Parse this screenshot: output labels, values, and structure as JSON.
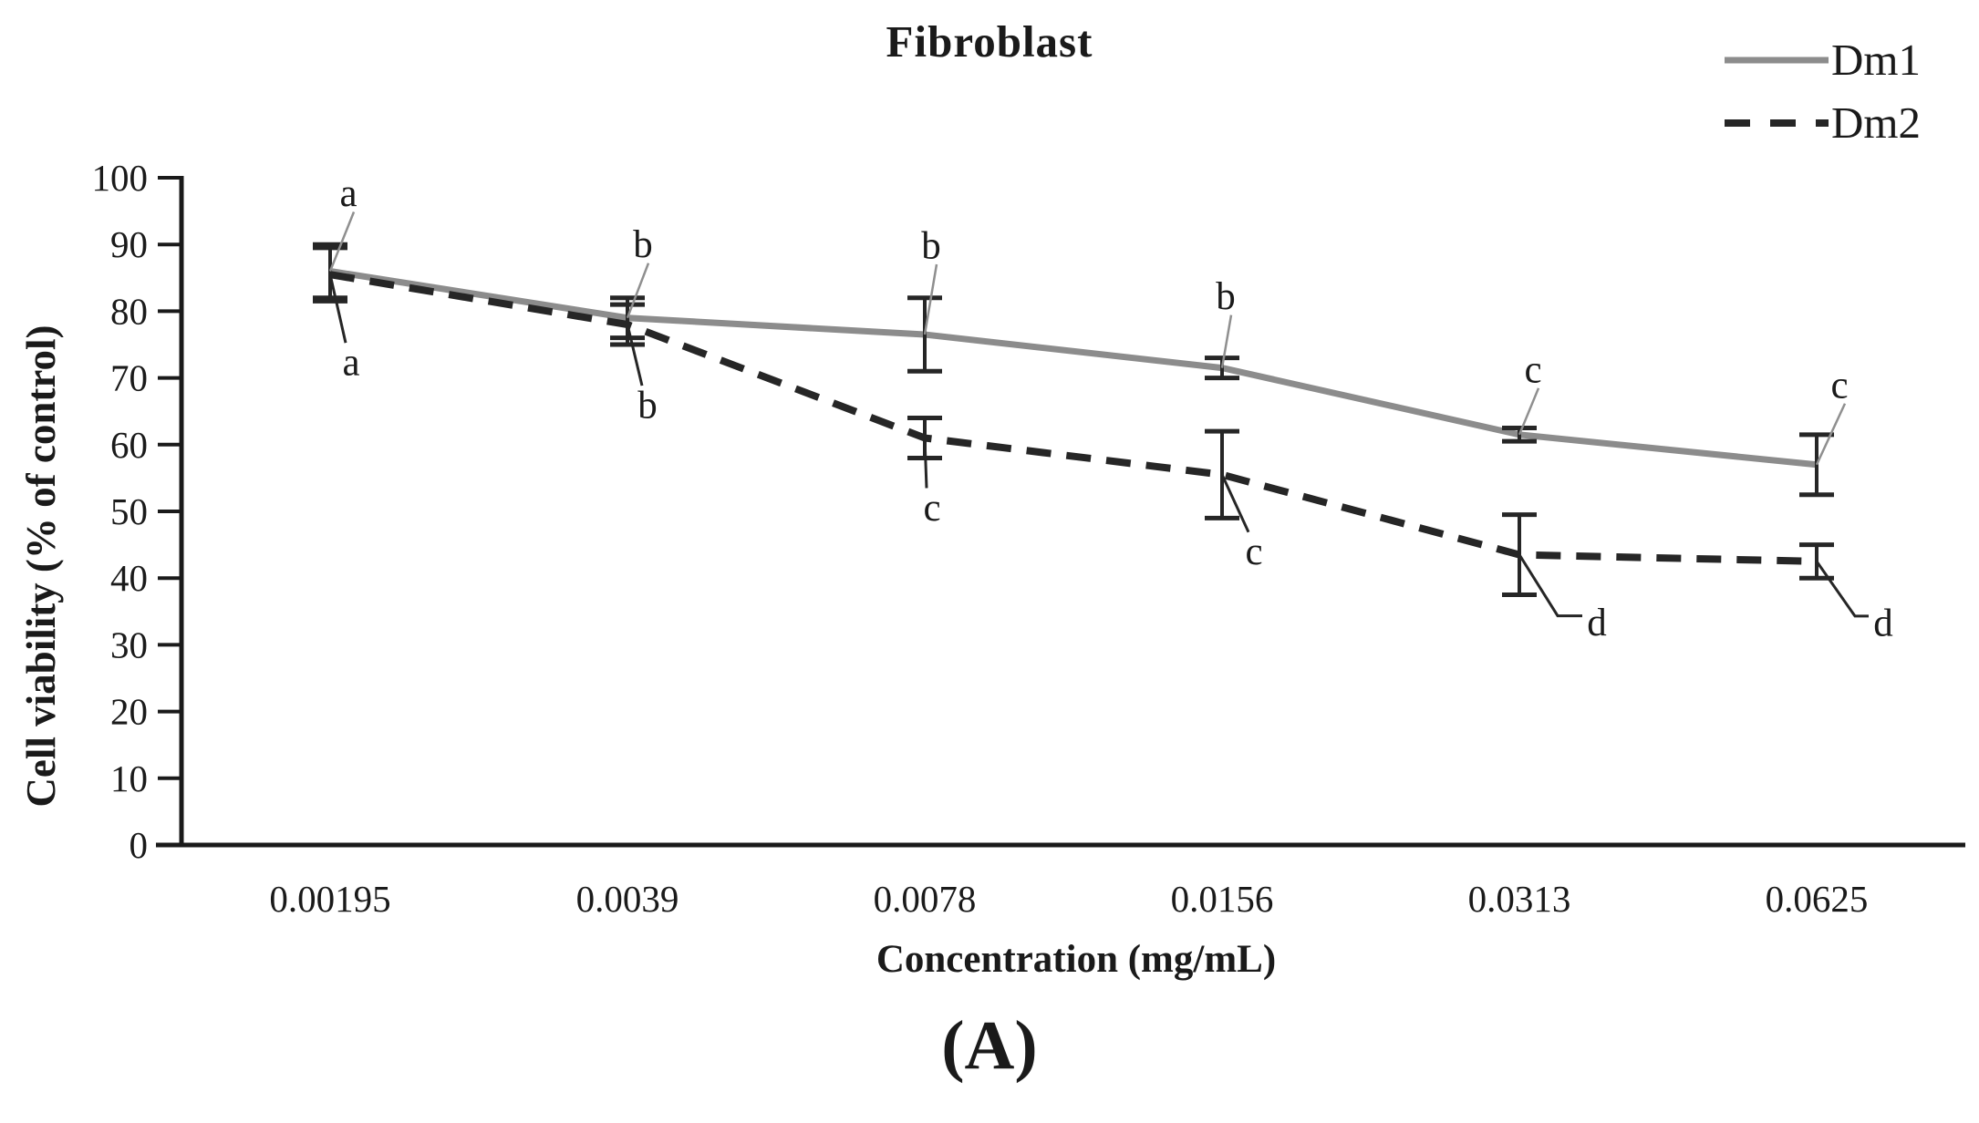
{
  "panel_label": "(A)",
  "legend": {
    "position": "top-right",
    "entries": [
      {
        "label": "Dm1",
        "line_style": "solid",
        "color": "#8c8c8c"
      },
      {
        "label": "Dm2",
        "line_style": "dashed",
        "color": "#262626"
      }
    ]
  },
  "colors": {
    "dm1_line": "#8c8c8c",
    "dm2_line": "#262626",
    "axis": "#1a1a1a",
    "error_bar": "#262626",
    "leader_gray": "#8f8f8f",
    "leader_black": "#262626",
    "background": "#ffffff"
  },
  "chart_data": {
    "type": "line",
    "title": "Fibroblast",
    "xlabel": "Concentration (mg/mL)",
    "ylabel": "Cell viability (% of control)",
    "ylim": [
      0,
      100
    ],
    "y_tick_step": 10,
    "grid": false,
    "legend_position": "top-right",
    "categories": [
      "0.00195",
      "0.0039",
      "0.0078",
      "0.0156",
      "0.0313",
      "0.0625"
    ],
    "series": [
      {
        "name": "Dm1",
        "style": "solid",
        "color": "#8c8c8c",
        "values": [
          86,
          79,
          76.5,
          71.5,
          61.5,
          57
        ],
        "error_bars": [
          4,
          3,
          5.5,
          1.5,
          1,
          4.5
        ],
        "sig_letters": [
          "a",
          "b",
          "b",
          "b",
          "c",
          "c"
        ]
      },
      {
        "name": "Dm2",
        "style": "dashed",
        "color": "#262626",
        "values": [
          85.5,
          78,
          61,
          55.5,
          43.5,
          42.5
        ],
        "error_bars": [
          4,
          3,
          3,
          6.5,
          6,
          2.5
        ],
        "sig_letters": [
          "a",
          "b",
          "c",
          "c",
          "d",
          "d"
        ]
      }
    ]
  }
}
